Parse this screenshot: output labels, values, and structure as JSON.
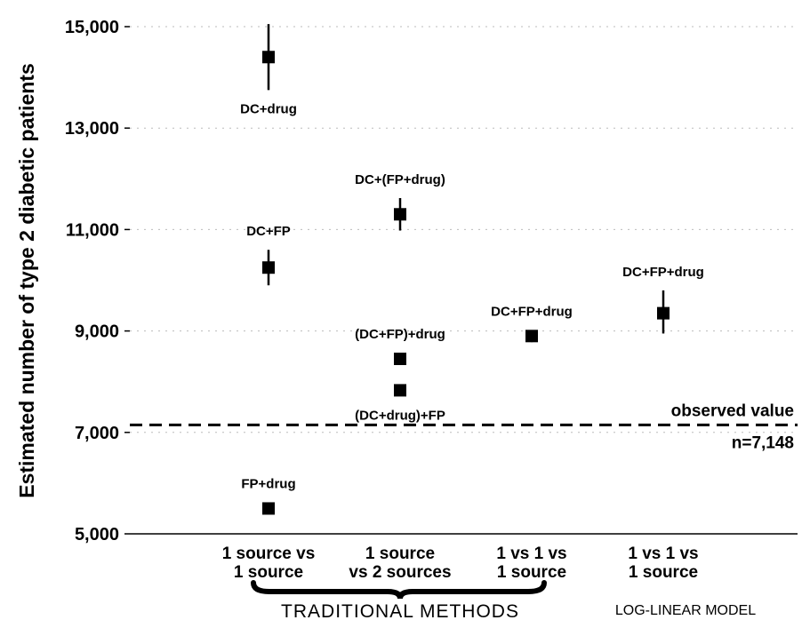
{
  "chart_data": {
    "type": "scatter",
    "ylabel": "Estimated number of type 2 diabetic patients",
    "ylim": [
      5000,
      15000
    ],
    "y_ticks": [
      5000,
      7000,
      9000,
      11000,
      13000,
      15000
    ],
    "y_tick_labels": [
      "5,000",
      "7,000",
      "9,000",
      "11,000",
      "13,000",
      "15,000"
    ],
    "grid": "dotted horizontal",
    "categories": [
      "1 source vs\n1 source",
      "1 source\nvs 2 sources",
      "1 vs 1 vs\n1 source",
      "1 vs 1 vs\n1 source"
    ],
    "points": [
      {
        "category": 0,
        "y": 14400,
        "low": 13750,
        "high": 15050,
        "label": "DC+drug",
        "label_pos": "below"
      },
      {
        "category": 0,
        "y": 10250,
        "low": 9900,
        "high": 10600,
        "label": "DC+FP",
        "label_pos": "above"
      },
      {
        "category": 0,
        "y": 5500,
        "low": 5500,
        "high": 5500,
        "label": "FP+drug",
        "label_pos": "above"
      },
      {
        "category": 1,
        "y": 11300,
        "low": 10980,
        "high": 11620,
        "label": "DC+(FP+drug)",
        "label_pos": "above"
      },
      {
        "category": 1,
        "y": 8450,
        "low": 8450,
        "high": 8450,
        "label": "(DC+FP)+drug",
        "label_pos": "above"
      },
      {
        "category": 1,
        "y": 7830,
        "low": 7830,
        "high": 7830,
        "label": "(DC+drug)+FP",
        "label_pos": "below"
      },
      {
        "category": 2,
        "y": 8900,
        "low": 8780,
        "high": 9000,
        "label": "DC+FP+drug",
        "label_pos": "above"
      },
      {
        "category": 3,
        "y": 9350,
        "low": 8950,
        "high": 9800,
        "label": "DC+FP+drug",
        "label_pos": "above"
      }
    ],
    "reference_line": {
      "y": 7148,
      "label": "observed value",
      "sublabel": "n=7,148",
      "style": "dashed"
    },
    "groups": [
      {
        "label": "TRADITIONAL METHODS",
        "categories": [
          0,
          1,
          2
        ],
        "bracket": true
      },
      {
        "label": "LOG-LINEAR MODEL",
        "categories": [
          3
        ],
        "bracket": false
      }
    ]
  }
}
